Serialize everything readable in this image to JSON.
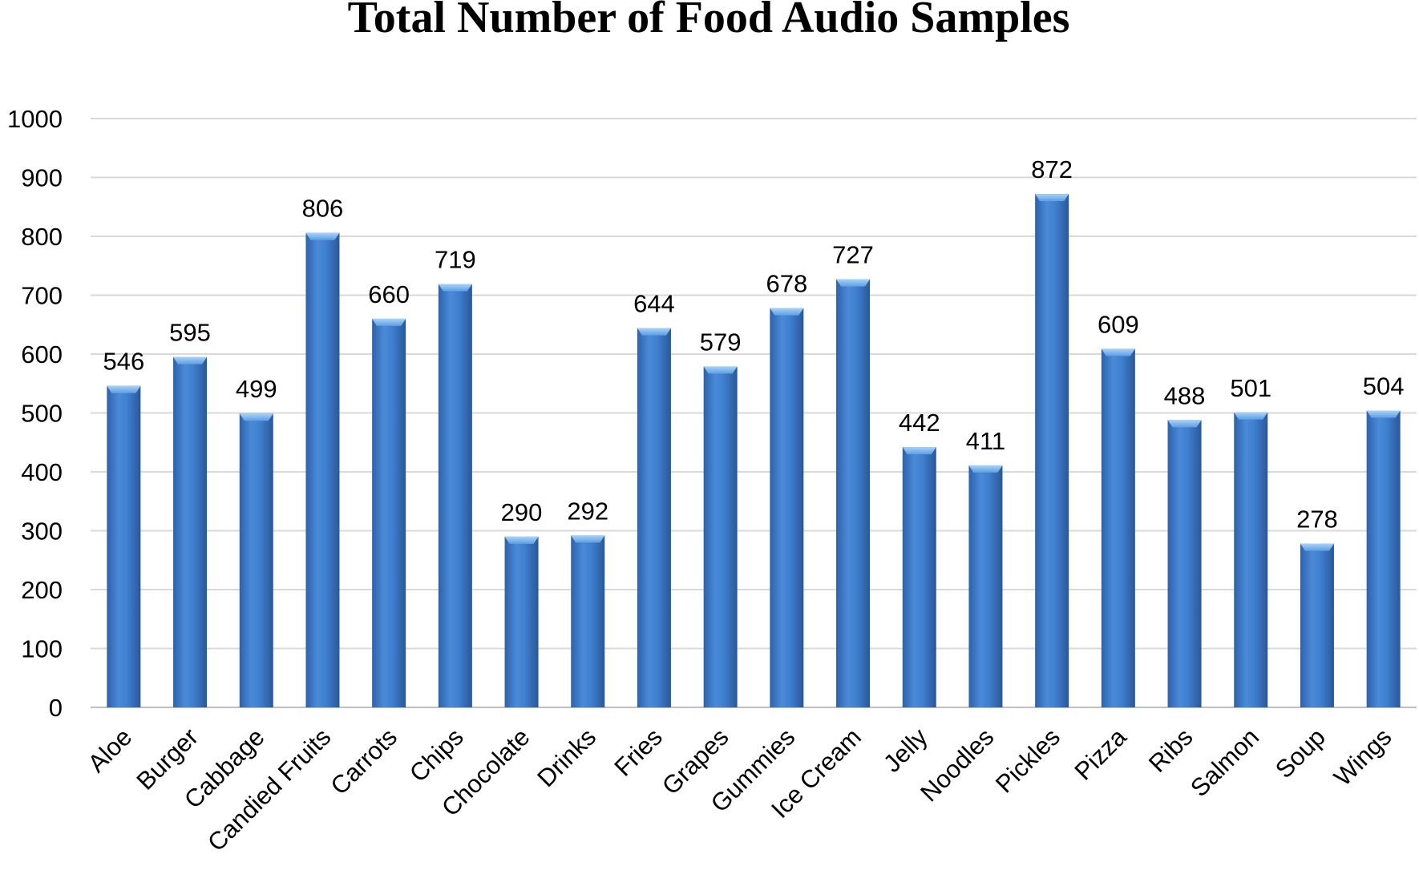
{
  "chart_data": {
    "type": "bar",
    "title": "Total Number of Food Audio Samples",
    "xlabel": "",
    "ylabel": "",
    "ylim": [
      0,
      1000
    ],
    "yticks": [
      0,
      100,
      200,
      300,
      400,
      500,
      600,
      700,
      800,
      900,
      1000
    ],
    "grid": true,
    "legend": "none",
    "categories": [
      "Aloe",
      "Burger",
      "Cabbage",
      "Candied Fruits",
      "Carrots",
      "Chips",
      "Chocolate",
      "Drinks",
      "Fries",
      "Grapes",
      "Gummies",
      "Ice Cream",
      "Jelly",
      "Noodles",
      "Pickles",
      "Pizza",
      "Ribs",
      "Salmon",
      "Soup",
      "Wings"
    ],
    "values": [
      546,
      595,
      499,
      806,
      660,
      719,
      290,
      292,
      644,
      579,
      678,
      727,
      442,
      411,
      872,
      609,
      488,
      501,
      278,
      504
    ],
    "colors": {
      "bar_light": "#5b9be0",
      "bar_mid": "#3f7fcf",
      "bar_dark": "#2a5fa8",
      "bar_cap": "#8ec2f2"
    }
  }
}
